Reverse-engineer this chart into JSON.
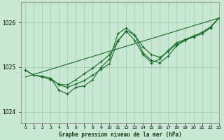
{
  "title": "Graphe pression niveau de la mer (hPa)",
  "background_color": "#c8e8d4",
  "grid_color": "#a0c8b0",
  "line_color": "#1a6b2a",
  "marker_color": "#1a6b2a",
  "xlim": [
    -0.5,
    23
  ],
  "ylim": [
    1023.75,
    1026.45
  ],
  "yticks": [
    1024,
    1025,
    1026
  ],
  "xticks": [
    0,
    1,
    2,
    3,
    4,
    5,
    6,
    7,
    8,
    9,
    10,
    11,
    12,
    13,
    14,
    15,
    16,
    17,
    18,
    19,
    20,
    21,
    22,
    23
  ],
  "series": [
    {
      "x": [
        0,
        1,
        2,
        3,
        4,
        5,
        6,
        7,
        8,
        9,
        10,
        11,
        12,
        13,
        14,
        15,
        16,
        17,
        18,
        19,
        20,
        21,
        22,
        23
      ],
      "y": [
        1024.93,
        1024.82,
        1024.78,
        1024.72,
        1024.62,
        1024.6,
        1024.72,
        1024.85,
        1024.98,
        1025.12,
        1025.28,
        1025.58,
        1025.82,
        1025.72,
        1025.45,
        1025.28,
        1025.22,
        1025.35,
        1025.52,
        1025.6,
        1025.68,
        1025.75,
        1025.88,
        1026.1
      ],
      "has_markers": true
    },
    {
      "x": [
        0,
        1,
        2,
        3,
        4,
        5,
        6,
        7,
        8,
        9,
        10,
        11,
        12,
        13,
        14,
        15,
        16,
        17,
        18,
        19,
        20,
        21,
        22,
        23
      ],
      "y": [
        1024.93,
        1024.82,
        1024.8,
        1024.75,
        1024.6,
        1024.55,
        1024.62,
        1024.7,
        1024.82,
        1024.95,
        1025.08,
        1025.6,
        1025.8,
        1025.6,
        1025.28,
        1025.1,
        1025.18,
        1025.38,
        1025.55,
        1025.62,
        1025.7,
        1025.78,
        1025.9,
        1026.1
      ],
      "has_markers": true
    },
    {
      "x": [
        3,
        4,
        5,
        6,
        7,
        8,
        9,
        10,
        11,
        12,
        13,
        14,
        15,
        16,
        17,
        18,
        19,
        20,
        21,
        22,
        23
      ],
      "y": [
        1024.75,
        1024.48,
        1024.4,
        1024.55,
        1024.58,
        1024.72,
        1025.0,
        1025.18,
        1025.75,
        1025.88,
        1025.72,
        1025.32,
        1025.15,
        1025.1,
        1025.25,
        1025.48,
        1025.6,
        1025.68,
        1025.75,
        1025.88,
        1026.1
      ],
      "has_markers": true
    },
    {
      "x": [
        0,
        23
      ],
      "y": [
        1024.78,
        1026.1
      ],
      "has_markers": false
    }
  ]
}
